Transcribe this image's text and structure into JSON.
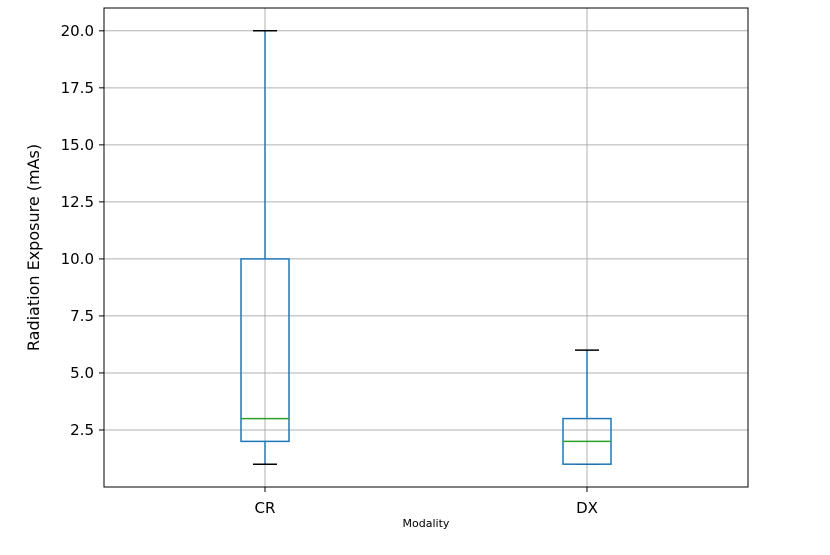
{
  "chart_data": {
    "type": "boxplot",
    "title": "",
    "xlabel": "Modality",
    "ylabel": "Radiation Exposure (mAs)",
    "ylim": [
      0.0,
      21.0
    ],
    "yticks": [
      2.5,
      5.0,
      7.5,
      10.0,
      12.5,
      15.0,
      17.5,
      20.0
    ],
    "ytick_labels": [
      "2.5",
      "5.0",
      "7.5",
      "10.0",
      "12.5",
      "15.0",
      "17.5",
      "20.0"
    ],
    "grid": true,
    "categories": [
      "CR",
      "DX"
    ],
    "boxes": [
      {
        "category": "CR",
        "whisker_low": 1.0,
        "q1": 2.0,
        "median": 3.0,
        "q3": 10.0,
        "whisker_high": 20.0
      },
      {
        "category": "DX",
        "whisker_low": 1.0,
        "q1": 1.0,
        "median": 2.0,
        "q3": 3.0,
        "whisker_high": 6.0
      }
    ],
    "colors": {
      "box": "#1f77b4",
      "median": "#2ca02c",
      "cap": "#000000",
      "grid": "#b0b0b0"
    }
  }
}
